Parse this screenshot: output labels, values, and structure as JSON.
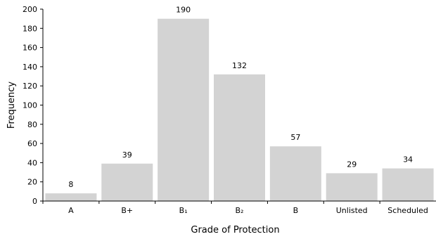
{
  "chart_data": {
    "type": "bar",
    "categories": [
      "A",
      "B+",
      "B₁",
      "B₂",
      "B",
      "Unlisted",
      "Scheduled"
    ],
    "values": [
      8,
      39,
      190,
      132,
      57,
      29,
      34
    ],
    "data_labels": [
      "8",
      "39",
      "190",
      "132",
      "57",
      "29",
      "34"
    ],
    "xlabel": "Grade of Protection",
    "ylabel": "Frequency",
    "ylim": [
      0,
      200
    ],
    "yticks": [
      0,
      20,
      40,
      60,
      80,
      100,
      120,
      140,
      160,
      180,
      200
    ],
    "bar_color": "#d3d3d3",
    "grid": false,
    "legend": "none"
  }
}
